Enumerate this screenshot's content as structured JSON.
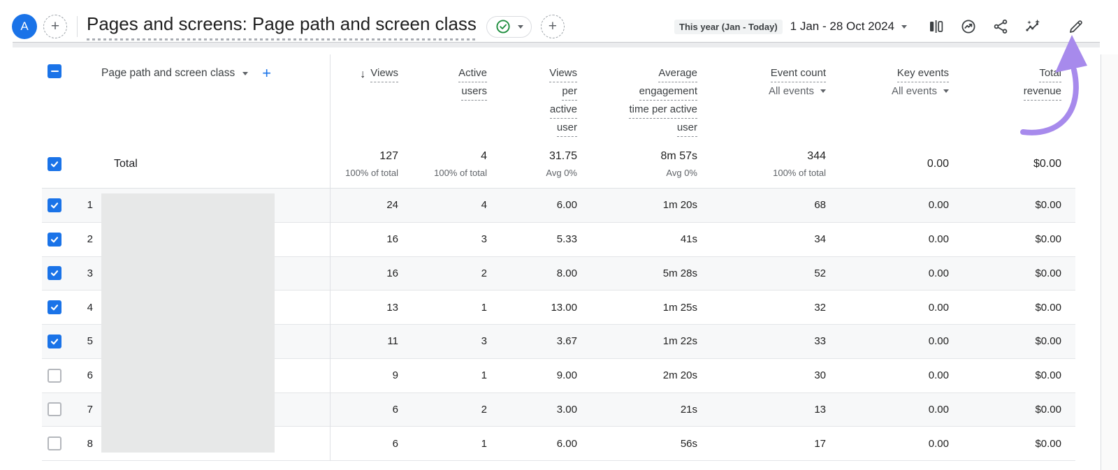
{
  "header": {
    "avatar_letter": "A",
    "title": "Pages and screens: Page path and screen class",
    "date_preset": "This year (Jan - Today)",
    "date_range": "1 Jan - 28 Oct 2024",
    "icons": [
      "new-page-icon",
      "saved-check-icon",
      "add-icon",
      "comparison-icon",
      "insights-icon",
      "share-icon",
      "sparkline-insights-icon",
      "edit-pencil-icon"
    ]
  },
  "table": {
    "dimension_header": "Page path and screen class",
    "columns": [
      {
        "lines": [
          "Views"
        ],
        "sorted": true
      },
      {
        "lines": [
          "Active",
          "users"
        ]
      },
      {
        "lines": [
          "Views",
          "per",
          "active",
          "user"
        ]
      },
      {
        "lines": [
          "Average",
          "engagement",
          "time per active",
          "user"
        ]
      },
      {
        "lines": [
          "Event count"
        ],
        "filter": "All events"
      },
      {
        "lines": [
          "Key events"
        ],
        "filter": "All events"
      },
      {
        "lines": [
          "Total",
          "revenue"
        ]
      }
    ],
    "total": {
      "label": "Total",
      "checked": true,
      "values": [
        "127",
        "4",
        "31.75",
        "8m 57s",
        "344",
        "0.00",
        "$0.00"
      ],
      "subvalues": [
        "100% of total",
        "100% of total",
        "Avg 0%",
        "Avg 0%",
        "100% of total",
        "",
        ""
      ]
    },
    "rows": [
      {
        "num": "1",
        "checked": true,
        "values": [
          "24",
          "4",
          "6.00",
          "1m 20s",
          "68",
          "0.00",
          "$0.00"
        ]
      },
      {
        "num": "2",
        "checked": true,
        "values": [
          "16",
          "3",
          "5.33",
          "41s",
          "34",
          "0.00",
          "$0.00"
        ]
      },
      {
        "num": "3",
        "checked": true,
        "values": [
          "16",
          "2",
          "8.00",
          "5m 28s",
          "52",
          "0.00",
          "$0.00"
        ]
      },
      {
        "num": "4",
        "checked": true,
        "values": [
          "13",
          "1",
          "13.00",
          "1m 25s",
          "32",
          "0.00",
          "$0.00"
        ]
      },
      {
        "num": "5",
        "checked": true,
        "values": [
          "11",
          "3",
          "3.67",
          "1m 22s",
          "33",
          "0.00",
          "$0.00"
        ]
      },
      {
        "num": "6",
        "checked": false,
        "values": [
          "9",
          "1",
          "9.00",
          "2m 20s",
          "30",
          "0.00",
          "$0.00"
        ]
      },
      {
        "num": "7",
        "checked": false,
        "values": [
          "6",
          "2",
          "3.00",
          "21s",
          "13",
          "0.00",
          "$0.00"
        ]
      },
      {
        "num": "8",
        "checked": false,
        "values": [
          "6",
          "1",
          "6.00",
          "56s",
          "17",
          "0.00",
          "$0.00"
        ]
      }
    ],
    "redacted_dimension_column": true
  },
  "colors": {
    "accent_blue": "#1a73e8",
    "check_green": "#1e8e3e",
    "annotation_arrow_purple": "#a78aec",
    "row_alt_bg": "#f7f8f9"
  }
}
